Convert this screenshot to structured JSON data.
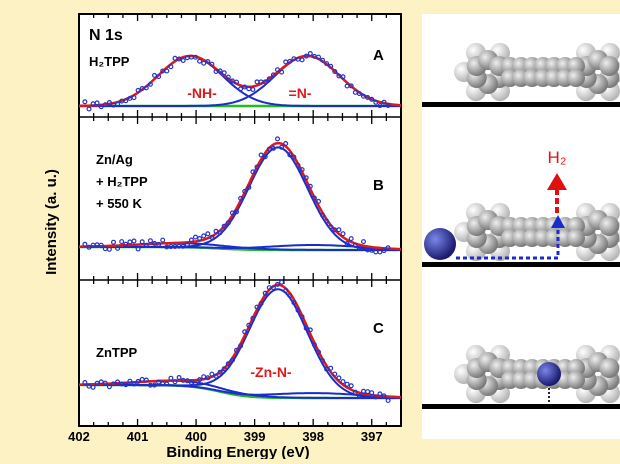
{
  "figure": {
    "ylabel": "Intensity (a. u.)",
    "xlabel": "Binding Energy (eV)",
    "colors": {
      "background": "#fdf2c4",
      "fit_total": "#dd1a1a",
      "component": "#1a2ccc",
      "background_fit": "#22bb22",
      "data_points": "#2233cc",
      "annotation_red": "#dd1a1a"
    }
  },
  "chart_data": [
    {
      "type": "scatter",
      "panel": "A",
      "title": "N 1s",
      "sample": "H₂TPP",
      "xlim": [
        402.0,
        396.5
      ],
      "x_reversed": true,
      "xticks": [
        "402",
        "401",
        "400",
        "399",
        "398",
        "397"
      ],
      "ylabel": "Intensity (a. u.)",
      "peaks": [
        {
          "label": "-NH-",
          "center": 400.1,
          "amplitude": 1.0
        },
        {
          "label": "=N-",
          "center": 398.1,
          "amplitude": 1.0
        }
      ],
      "series": [
        {
          "name": "fit total",
          "style": "line"
        },
        {
          "name": "component",
          "style": "line"
        },
        {
          "name": "background",
          "style": "line"
        },
        {
          "name": "data",
          "style": "markers"
        }
      ]
    },
    {
      "type": "scatter",
      "panel": "B",
      "sample_lines": [
        "Zn/Ag",
        "+ H₂TPP",
        "+ 550 K"
      ],
      "xlim": [
        402.0,
        396.5
      ],
      "peaks": [
        {
          "label": "",
          "center": 398.6,
          "amplitude": 2.05
        },
        {
          "label": "",
          "center": 400.2,
          "amplitude": 0.08
        },
        {
          "label": "",
          "center": 398.0,
          "amplitude": 0.1
        }
      ]
    },
    {
      "type": "scatter",
      "panel": "C",
      "sample": "ZnTPP",
      "xlim": [
        402.0,
        396.5
      ],
      "peaks": [
        {
          "label": "-Zn-N-",
          "center": 398.6,
          "amplitude": 1.55
        },
        {
          "label": "",
          "center": 400.2,
          "amplitude": 0.07
        },
        {
          "label": "",
          "center": 398.0,
          "amplitude": 0.07
        }
      ],
      "xlabel": "Binding Energy (eV)"
    }
  ],
  "models": {
    "h2": "H₂"
  }
}
